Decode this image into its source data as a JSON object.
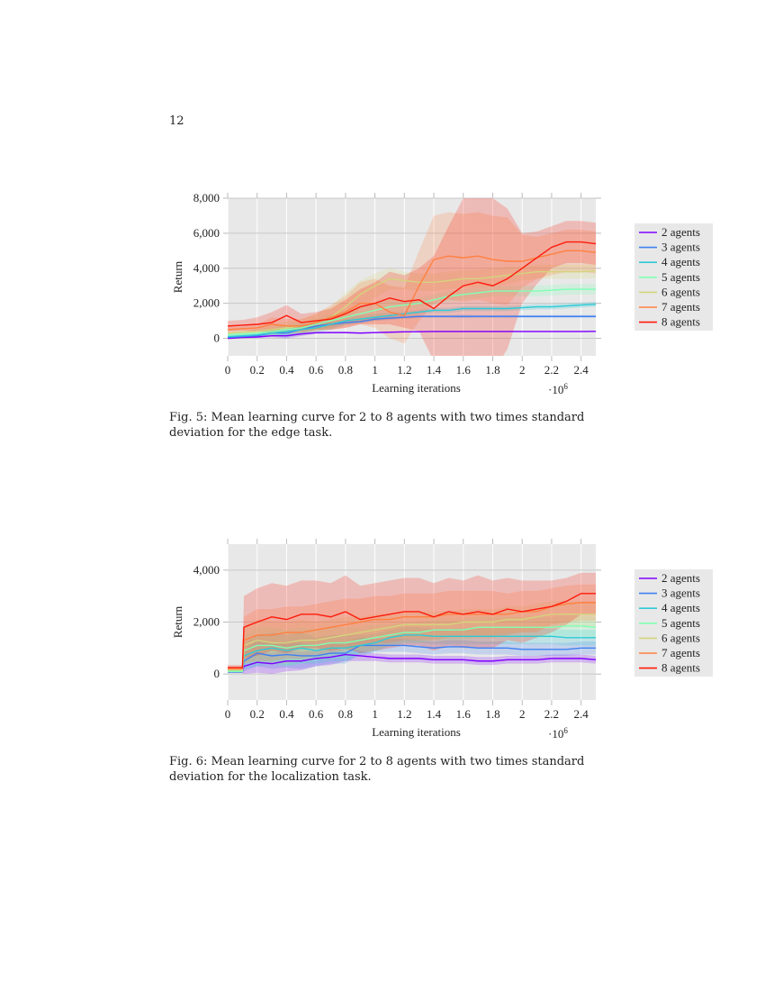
{
  "page_number": "12",
  "figures": [
    {
      "caption": "Fig. 5: Mean learning curve for 2 to 8 agents with two times standard deviation for the edge task."
    },
    {
      "caption": "Fig. 6: Mean learning curve for 2 to 8 agents with two times standard deviation for the localization task."
    }
  ],
  "chart_data": [
    {
      "type": "line",
      "xlabel": "Learning iterations",
      "x_scale_label": "·10^6",
      "ylabel": "Return",
      "xlim": [
        0,
        2.5
      ],
      "ylim": [
        -1000,
        8000
      ],
      "xticks": [
        "0",
        "0.2",
        "0.4",
        "0.6",
        "0.8",
        "1",
        "1.2",
        "1.4",
        "1.6",
        "1.8",
        "2",
        "2.2",
        "2.4"
      ],
      "xtick_values": [
        0,
        0.2,
        0.4,
        0.6,
        0.8,
        1,
        1.2,
        1.4,
        1.6,
        1.8,
        2,
        2.2,
        2.4
      ],
      "yticks": [
        "0",
        "2,000",
        "4,000",
        "6,000",
        "8,000"
      ],
      "ytick_values": [
        0,
        2000,
        4000,
        6000,
        8000
      ],
      "grid": true,
      "legend": "right",
      "x": [
        0,
        0.1,
        0.2,
        0.3,
        0.4,
        0.5,
        0.6,
        0.7,
        0.8,
        0.9,
        1.0,
        1.1,
        1.2,
        1.3,
        1.4,
        1.5,
        1.6,
        1.7,
        1.8,
        1.9,
        2.0,
        2.1,
        2.2,
        2.3,
        2.4,
        2.5
      ],
      "series": [
        {
          "name": "2 agents",
          "color": "#8000ff",
          "values": [
            0,
            50,
            80,
            150,
            150,
            250,
            320,
            330,
            330,
            300,
            330,
            350,
            370,
            380,
            390,
            390,
            390,
            390,
            390,
            390,
            390,
            390,
            390,
            390,
            390,
            400
          ],
          "std2": [
            50,
            50,
            60,
            80,
            150,
            120,
            60,
            50,
            50,
            50,
            40,
            40,
            40,
            40,
            40,
            40,
            40,
            40,
            40,
            40,
            40,
            40,
            40,
            40,
            40,
            40
          ]
        },
        {
          "name": "3 agents",
          "color": "#3f80f2",
          "values": [
            50,
            100,
            150,
            300,
            300,
            500,
            700,
            800,
            900,
            950,
            1100,
            1150,
            1200,
            1250,
            1250,
            1250,
            1250,
            1250,
            1250,
            1250,
            1250,
            1250,
            1250,
            1250,
            1250,
            1250
          ],
          "std2": [
            60,
            60,
            80,
            150,
            250,
            250,
            200,
            150,
            100,
            100,
            100,
            100,
            80,
            80,
            80,
            80,
            100,
            80,
            80,
            80,
            80,
            80,
            80,
            80,
            80,
            80
          ]
        },
        {
          "name": "4 agents",
          "color": "#2ccad6",
          "values": [
            100,
            150,
            200,
            300,
            400,
            500,
            600,
            800,
            1000,
            1100,
            1200,
            1300,
            1400,
            1500,
            1600,
            1600,
            1700,
            1700,
            1700,
            1700,
            1750,
            1800,
            1800,
            1850,
            1900,
            1950
          ],
          "std2": [
            80,
            80,
            100,
            200,
            300,
            300,
            300,
            300,
            250,
            200,
            200,
            150,
            150,
            150,
            150,
            150,
            150,
            150,
            150,
            150,
            150,
            150,
            150,
            150,
            150,
            150
          ]
        },
        {
          "name": "5 agents",
          "color": "#80ffb4",
          "values": [
            200,
            250,
            300,
            400,
            500,
            600,
            800,
            1000,
            1200,
            1400,
            1600,
            1800,
            1900,
            2000,
            2200,
            2400,
            2500,
            2600,
            2700,
            2700,
            2700,
            2700,
            2750,
            2800,
            2800,
            2800
          ],
          "std2": [
            100,
            100,
            150,
            250,
            300,
            300,
            350,
            400,
            400,
            400,
            400,
            400,
            300,
            300,
            300,
            300,
            300,
            300,
            300,
            300,
            300,
            300,
            300,
            300,
            300,
            300
          ]
        },
        {
          "name": "6 agents",
          "color": "#d4d47c",
          "values": [
            300,
            350,
            400,
            500,
            600,
            700,
            900,
            1200,
            1800,
            2500,
            3000,
            3400,
            3300,
            3200,
            3200,
            3300,
            3400,
            3400,
            3500,
            3600,
            3700,
            3800,
            3800,
            3800,
            3800,
            3850
          ],
          "std2": [
            100,
            120,
            150,
            300,
            350,
            400,
            500,
            600,
            800,
            800,
            700,
            600,
            500,
            500,
            500,
            500,
            500,
            500,
            500,
            500,
            400,
            400,
            400,
            400,
            400,
            400
          ]
        },
        {
          "name": "7 agents",
          "color": "#ff8040",
          "values": [
            500,
            550,
            600,
            800,
            700,
            700,
            900,
            1200,
            1500,
            2000,
            2000,
            1500,
            1300,
            3000,
            4500,
            4700,
            4600,
            4700,
            4500,
            4400,
            4400,
            4600,
            4800,
            5000,
            5000,
            4900
          ],
          "std2": [
            150,
            150,
            200,
            400,
            400,
            400,
            500,
            700,
            900,
            1200,
            1400,
            1500,
            1600,
            2000,
            2500,
            2500,
            2500,
            2500,
            2500,
            2500,
            1500,
            1200,
            1200,
            1200,
            1200,
            1200
          ]
        },
        {
          "name": "8 agents",
          "color": "#ff1a0a",
          "values": [
            700,
            750,
            800,
            900,
            1300,
            900,
            1000,
            1100,
            1400,
            1800,
            2000,
            2300,
            2100,
            2200,
            1700,
            2400,
            3000,
            3200,
            3000,
            3400,
            4000,
            4600,
            5200,
            5500,
            5500,
            5400
          ],
          "std2": [
            300,
            300,
            400,
            600,
            600,
            500,
            500,
            600,
            800,
            1000,
            1200,
            1500,
            1500,
            1800,
            3000,
            4000,
            5000,
            5500,
            5000,
            4000,
            2000,
            1500,
            1200,
            1200,
            1200,
            1200
          ]
        }
      ]
    },
    {
      "type": "line",
      "xlabel": "Learning iterations",
      "x_scale_label": "·10^6",
      "ylabel": "Return",
      "xlim": [
        0,
        2.5
      ],
      "ylim": [
        -1000,
        5000
      ],
      "xticks": [
        "0",
        "0.2",
        "0.4",
        "0.6",
        "0.8",
        "1",
        "1.2",
        "1.4",
        "1.6",
        "1.8",
        "2",
        "2.2",
        "2.4"
      ],
      "xtick_values": [
        0,
        0.2,
        0.4,
        0.6,
        0.8,
        1,
        1.2,
        1.4,
        1.6,
        1.8,
        2,
        2.2,
        2.4
      ],
      "yticks": [
        "0",
        "2,000",
        "4,000"
      ],
      "ytick_values": [
        0,
        2000,
        4000
      ],
      "grid": true,
      "legend": "right",
      "x": [
        0,
        0.1,
        0.11,
        0.2,
        0.3,
        0.4,
        0.5,
        0.6,
        0.7,
        0.8,
        0.9,
        1.0,
        1.1,
        1.2,
        1.3,
        1.4,
        1.5,
        1.6,
        1.7,
        1.8,
        1.9,
        2.0,
        2.1,
        2.2,
        2.3,
        2.4,
        2.5
      ],
      "series": [
        {
          "name": "2 agents",
          "color": "#8000ff",
          "values": [
            80,
            80,
            300,
            450,
            400,
            500,
            500,
            600,
            650,
            750,
            700,
            650,
            600,
            600,
            600,
            550,
            550,
            550,
            500,
            500,
            550,
            550,
            550,
            600,
            600,
            600,
            550
          ],
          "std2": [
            40,
            40,
            300,
            400,
            400,
            400,
            350,
            300,
            300,
            250,
            200,
            150,
            150,
            150,
            150,
            150,
            150,
            150,
            150,
            150,
            150,
            150,
            150,
            150,
            150,
            150,
            150
          ]
        },
        {
          "name": "3 agents",
          "color": "#3f80f2",
          "values": [
            80,
            80,
            500,
            800,
            700,
            750,
            700,
            700,
            800,
            800,
            1100,
            1100,
            1100,
            1100,
            1050,
            1000,
            1050,
            1050,
            1000,
            1000,
            1000,
            950,
            950,
            950,
            950,
            1000,
            1000
          ],
          "std2": [
            40,
            40,
            400,
            500,
            500,
            500,
            500,
            400,
            400,
            400,
            300,
            250,
            250,
            250,
            250,
            250,
            250,
            250,
            250,
            250,
            250,
            250,
            250,
            250,
            250,
            250,
            250
          ]
        },
        {
          "name": "4 agents",
          "color": "#2ccad6",
          "values": [
            100,
            100,
            700,
            900,
            1000,
            900,
            1000,
            900,
            1000,
            1000,
            1100,
            1200,
            1400,
            1500,
            1500,
            1450,
            1450,
            1450,
            1450,
            1450,
            1450,
            1450,
            1450,
            1450,
            1400,
            1400,
            1400
          ],
          "std2": [
            50,
            50,
            500,
            600,
            600,
            600,
            600,
            500,
            500,
            500,
            400,
            350,
            300,
            300,
            300,
            300,
            300,
            300,
            300,
            300,
            300,
            300,
            300,
            300,
            300,
            300,
            300
          ]
        },
        {
          "name": "5 agents",
          "color": "#80ffb4",
          "values": [
            100,
            100,
            900,
            1100,
            1100,
            1000,
            1100,
            1100,
            1200,
            1200,
            1300,
            1400,
            1500,
            1600,
            1600,
            1700,
            1700,
            1700,
            1800,
            1800,
            1800,
            1800,
            1800,
            1800,
            1850,
            1850,
            1800
          ],
          "std2": [
            50,
            50,
            600,
            700,
            700,
            700,
            700,
            600,
            600,
            600,
            500,
            500,
            400,
            400,
            400,
            400,
            400,
            400,
            400,
            400,
            400,
            400,
            400,
            400,
            400,
            400,
            400
          ]
        },
        {
          "name": "6 agents",
          "color": "#d4d47c",
          "values": [
            150,
            150,
            1100,
            1300,
            1200,
            1200,
            1300,
            1300,
            1400,
            1500,
            1600,
            1700,
            1800,
            1900,
            1900,
            1900,
            1900,
            2000,
            2000,
            2000,
            2100,
            2100,
            2200,
            2300,
            2300,
            2300,
            2300
          ],
          "std2": [
            50,
            50,
            700,
            800,
            800,
            800,
            800,
            700,
            700,
            700,
            600,
            600,
            500,
            500,
            500,
            500,
            500,
            500,
            500,
            500,
            500,
            500,
            500,
            500,
            500,
            500,
            500
          ]
        },
        {
          "name": "7 agents",
          "color": "#ff8040",
          "values": [
            200,
            200,
            1300,
            1500,
            1500,
            1600,
            1600,
            1700,
            1800,
            1900,
            2000,
            2100,
            2100,
            2200,
            2200,
            2200,
            2300,
            2300,
            2300,
            2300,
            2300,
            2400,
            2400,
            2600,
            2700,
            2750,
            2750
          ],
          "std2": [
            60,
            60,
            900,
            1000,
            1000,
            1000,
            1000,
            1000,
            1000,
            1000,
            900,
            900,
            900,
            900,
            900,
            900,
            900,
            900,
            900,
            900,
            800,
            800,
            800,
            700,
            700,
            700,
            700
          ]
        },
        {
          "name": "8 agents",
          "color": "#ff1a0a",
          "values": [
            250,
            250,
            1800,
            2000,
            2200,
            2100,
            2300,
            2300,
            2200,
            2400,
            2100,
            2200,
            2300,
            2400,
            2400,
            2200,
            2400,
            2300,
            2400,
            2300,
            2500,
            2400,
            2500,
            2600,
            2800,
            3100,
            3100
          ],
          "std2": [
            100,
            100,
            1200,
            1300,
            1300,
            1300,
            1300,
            1300,
            1300,
            1400,
            1300,
            1300,
            1300,
            1300,
            1300,
            1300,
            1300,
            1300,
            1400,
            1300,
            1200,
            1200,
            1100,
            1000,
            900,
            800,
            800
          ]
        }
      ]
    }
  ]
}
